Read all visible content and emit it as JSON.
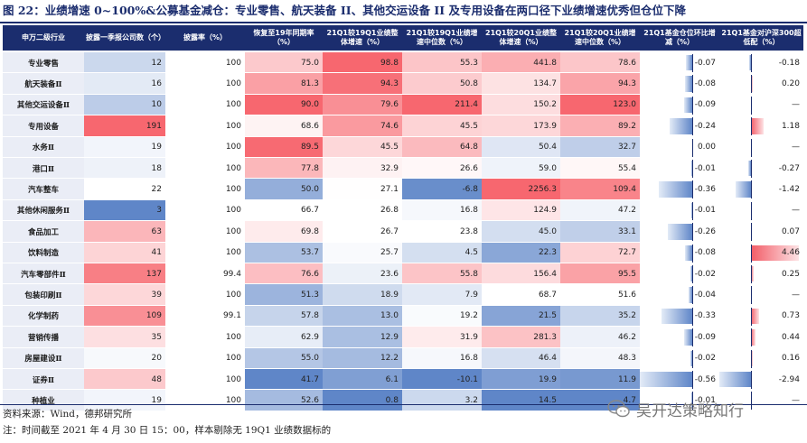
{
  "title": "图 22：业绩增速 0~100%&公募基金减仓：专业零售、航天装备 II、其他交运设备 II 及专用设备在两口径下业绩增速优秀但仓位下降",
  "header": {
    "name": "申万二级行业",
    "cols": [
      "披露一季报公司数（个）",
      "披露率（%）",
      "恢复至19年同期率（%）",
      "21Q1较19Q1业绩整体增速（%）",
      "21Q1较19Q1业绩增速中位数（%）",
      "21Q1较20Q1业绩整体增速（%）",
      "21Q1较20Q1业绩增速中位数（%）",
      "21Q1基金仓位环比增减（%）",
      "21Q1基金对沪深300超低配（%）"
    ]
  },
  "colors": {
    "header_bg": "#1b2d6e",
    "name_bg": "#eaedf6",
    "pos_bar": "#f25c67",
    "neg_bar": "#5f86c8"
  },
  "rows": [
    {
      "name": "专业零售",
      "count": "12",
      "rate": "100",
      "recover": "75.0",
      "g19": "98.8",
      "m19": "55.3",
      "g20": "441.8",
      "m20": "78.6",
      "chg": "-0.07",
      "ow": "-0.18",
      "chg_v": -0.07,
      "ow_v": -0.18
    },
    {
      "name": "航天装备Ⅱ",
      "count": "16",
      "rate": "100",
      "recover": "81.3",
      "g19": "94.3",
      "m19": "50.8",
      "g20": "134.7",
      "m20": "94.3",
      "chg": "-0.08",
      "ow": "0.20",
      "chg_v": -0.08,
      "ow_v": 0.2
    },
    {
      "name": "其他交运设备Ⅱ",
      "count": "10",
      "rate": "100",
      "recover": "90.0",
      "g19": "79.6",
      "m19": "211.4",
      "g20": "150.2",
      "m20": "123.0",
      "chg": "-0.09",
      "ow": "—",
      "chg_v": -0.09,
      "ow_v": 0
    },
    {
      "name": "专用设备",
      "count": "191",
      "rate": "100",
      "recover": "68.6",
      "g19": "74.6",
      "m19": "45.5",
      "g20": "173.9",
      "m20": "89.2",
      "chg": "-0.24",
      "ow": "1.18",
      "chg_v": -0.24,
      "ow_v": 1.18
    },
    {
      "name": "水务Ⅱ",
      "count": "19",
      "rate": "100",
      "recover": "89.5",
      "g19": "45.5",
      "m19": "64.8",
      "g20": "50.4",
      "m20": "32.7",
      "chg": "0.00",
      "ow": "—",
      "chg_v": 0.0,
      "ow_v": 0
    },
    {
      "name": "港口Ⅱ",
      "count": "18",
      "rate": "100",
      "recover": "77.8",
      "g19": "32.9",
      "m19": "26.6",
      "g20": "59.0",
      "m20": "55.4",
      "chg": "-0.01",
      "ow": "-0.27",
      "chg_v": -0.01,
      "ow_v": -0.27
    },
    {
      "name": "汽车整车",
      "count": "22",
      "rate": "100",
      "recover": "50.0",
      "g19": "27.1",
      "m19": "-6.8",
      "g20": "2256.3",
      "m20": "109.4",
      "chg": "-0.36",
      "ow": "-1.42",
      "chg_v": -0.36,
      "ow_v": -1.42
    },
    {
      "name": "其他休闲服务Ⅱ",
      "count": "3",
      "rate": "100",
      "recover": "66.7",
      "g19": "26.8",
      "m19": "16.8",
      "g20": "124.9",
      "m20": "47.2",
      "chg": "-0.01",
      "ow": "—",
      "chg_v": -0.01,
      "ow_v": 0
    },
    {
      "name": "食品加工",
      "count": "63",
      "rate": "100",
      "recover": "69.8",
      "g19": "26.7",
      "m19": "23.8",
      "g20": "45.0",
      "m20": "33.1",
      "chg": "-0.26",
      "ow": "0.07",
      "chg_v": -0.26,
      "ow_v": 0.07
    },
    {
      "name": "饮料制造",
      "count": "41",
      "rate": "100",
      "recover": "53.7",
      "g19": "25.7",
      "m19": "4.5",
      "g20": "22.3",
      "m20": "72.7",
      "chg": "-0.08",
      "ow": "4.46",
      "chg_v": -0.08,
      "ow_v": 4.46
    },
    {
      "name": "汽车零部件Ⅱ",
      "count": "137",
      "rate": "99.4",
      "recover": "76.6",
      "g19": "23.6",
      "m19": "55.8",
      "g20": "156.4",
      "m20": "95.5",
      "chg": "-0.02",
      "ow": "0.25",
      "chg_v": -0.02,
      "ow_v": 0.25
    },
    {
      "name": "包装印刷Ⅱ",
      "count": "39",
      "rate": "100",
      "recover": "51.3",
      "g19": "18.9",
      "m19": "7.9",
      "g20": "68.7",
      "m20": "51.6",
      "chg": "-0.04",
      "ow": "—",
      "chg_v": -0.04,
      "ow_v": 0
    },
    {
      "name": "化学制药",
      "count": "109",
      "rate": "99.1",
      "recover": "57.8",
      "g19": "13.0",
      "m19": "19.2",
      "g20": "21.5",
      "m20": "35.2",
      "chg": "-0.33",
      "ow": "0.73",
      "chg_v": -0.33,
      "ow_v": 0.73
    },
    {
      "name": "营销传播",
      "count": "35",
      "rate": "100",
      "recover": "62.9",
      "g19": "12.9",
      "m19": "31.9",
      "g20": "281.3",
      "m20": "46.2",
      "chg": "-0.09",
      "ow": "0.44",
      "chg_v": -0.09,
      "ow_v": 0.44
    },
    {
      "name": "房屋建设Ⅱ",
      "count": "20",
      "rate": "100",
      "recover": "55.0",
      "g19": "12.2",
      "m19": "16.8",
      "g20": "46.4",
      "m20": "48.3",
      "chg": "-0.02",
      "ow": "0.16",
      "chg_v": -0.02,
      "ow_v": 0.16
    },
    {
      "name": "证券Ⅱ",
      "count": "48",
      "rate": "100",
      "recover": "41.7",
      "g19": "6.1",
      "m19": "-10.1",
      "g20": "19.9",
      "m20": "11.9",
      "chg": "-0.56",
      "ow": "-2.94",
      "chg_v": -0.56,
      "ow_v": -2.94
    },
    {
      "name": "种植业",
      "count": "19",
      "rate": "100",
      "recover": "52.6",
      "g19": "0.8",
      "m19": "3.2",
      "g20": "14.5",
      "m20": "4.7",
      "chg": "-0.01",
      "ow": "—",
      "chg_v": -0.01,
      "ow_v": 0
    }
  ],
  "footer": {
    "source": "资料来源：Wind，德邦研究所",
    "note": "注：时间截至 2021 年 4 月 30 日 15：00，样本剔除无 19Q1 业绩数据标的"
  },
  "watermark": "吴开达策略知行"
}
